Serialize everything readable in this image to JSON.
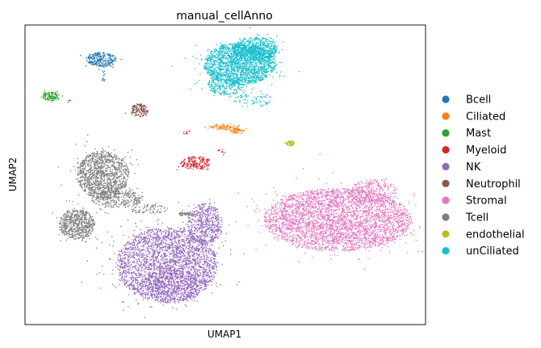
{
  "chart_data": {
    "type": "scatter",
    "title": "manual_cellAnno",
    "xlabel": "UMAP1",
    "ylabel": "UMAP2",
    "grid": false,
    "legend_position": "right",
    "axis_ticks": "none",
    "xlim": [
      0,
      100
    ],
    "ylim": [
      0,
      100
    ],
    "series": [
      {
        "name": "Bcell",
        "color": "#1f77b4",
        "clusters": [
          {
            "cx": 19.0,
            "cy": 88.5,
            "rx": 3.8,
            "ry": 2.4,
            "n": 260
          },
          {
            "cx": 19.6,
            "cy": 83.5,
            "rx": 0.5,
            "ry": 2.5,
            "n": 14
          }
        ]
      },
      {
        "name": "Ciliated",
        "color": "#ff7f0e",
        "clusters": [
          {
            "cx": 49.5,
            "cy": 66.0,
            "rx": 4.0,
            "ry": 1.0,
            "n": 90
          },
          {
            "cx": 53.0,
            "cy": 64.7,
            "rx": 1.8,
            "ry": 0.9,
            "n": 50
          }
        ]
      },
      {
        "name": "Mast",
        "color": "#2ca02c",
        "clusters": [
          {
            "cx": 6.6,
            "cy": 76.2,
            "rx": 2.2,
            "ry": 1.6,
            "n": 120
          },
          {
            "cx": 11.0,
            "cy": 74.5,
            "rx": 0.7,
            "ry": 0.5,
            "n": 6
          }
        ]
      },
      {
        "name": "Myeloid",
        "color": "#d62728",
        "clusters": [
          {
            "cx": 42.5,
            "cy": 54.0,
            "rx": 4.0,
            "ry": 2.2,
            "n": 190
          },
          {
            "cx": 40.5,
            "cy": 64.0,
            "rx": 1.0,
            "ry": 0.8,
            "n": 10
          },
          {
            "cx": 49.0,
            "cy": 57.5,
            "rx": 1.5,
            "ry": 1.0,
            "n": 10
          }
        ]
      },
      {
        "name": "NK",
        "color": "#9467bd",
        "clusters": [
          {
            "cx": 35.5,
            "cy": 20.0,
            "rx": 12.5,
            "ry": 12.5,
            "n": 2800
          },
          {
            "cx": 45.0,
            "cy": 33.5,
            "rx": 4.5,
            "ry": 7.0,
            "n": 520
          },
          {
            "cx": 37.0,
            "cy": 13.0,
            "rx": 7.0,
            "ry": 6.0,
            "n": 350
          }
        ]
      },
      {
        "name": "Neutrophil",
        "color": "#8c564b",
        "clusters": [
          {
            "cx": 28.6,
            "cy": 71.5,
            "rx": 2.2,
            "ry": 2.2,
            "n": 150
          }
        ]
      },
      {
        "name": "Stromal",
        "color": "#e377c2",
        "clusters": [
          {
            "cx": 78.0,
            "cy": 35.0,
            "rx": 18.5,
            "ry": 10.5,
            "n": 3600
          },
          {
            "cx": 87.0,
            "cy": 44.5,
            "rx": 6.0,
            "ry": 4.0,
            "n": 250
          }
        ]
      },
      {
        "name": "Tcell",
        "color": "#7f7f7f",
        "clusters": [
          {
            "cx": 19.5,
            "cy": 50.0,
            "rx": 6.5,
            "ry": 8.0,
            "n": 1250
          },
          {
            "cx": 13.0,
            "cy": 33.5,
            "rx": 4.5,
            "ry": 5.0,
            "n": 650
          },
          {
            "cx": 23.0,
            "cy": 42.0,
            "rx": 6.5,
            "ry": 3.0,
            "n": 300
          },
          {
            "cx": 31.0,
            "cy": 38.5,
            "rx": 5.0,
            "ry": 1.5,
            "n": 80
          },
          {
            "cx": 40.0,
            "cy": 37.0,
            "rx": 2.0,
            "ry": 0.6,
            "n": 50
          }
        ]
      },
      {
        "name": "endothelial",
        "color": "#bcbd22",
        "clusters": [
          {
            "cx": 66.2,
            "cy": 60.5,
            "rx": 1.0,
            "ry": 0.9,
            "n": 55
          }
        ]
      },
      {
        "name": "unCiliated",
        "color": "#17becf",
        "clusters": [
          {
            "cx": 53.5,
            "cy": 87.0,
            "rx": 9.0,
            "ry": 7.0,
            "n": 1900
          },
          {
            "cx": 57.5,
            "cy": 92.0,
            "rx": 5.5,
            "ry": 4.0,
            "n": 550
          },
          {
            "cx": 50.0,
            "cy": 80.0,
            "rx": 4.5,
            "ry": 3.5,
            "n": 250
          },
          {
            "cx": 57.0,
            "cy": 75.0,
            "rx": 5.0,
            "ry": 2.5,
            "n": 70
          }
        ]
      }
    ]
  }
}
